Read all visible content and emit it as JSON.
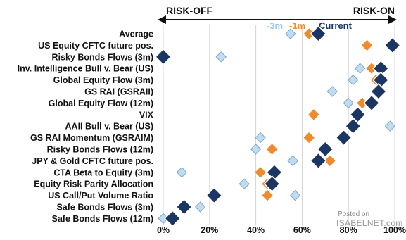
{
  "chart_data": {
    "type": "scatter",
    "header": {
      "left": "RISK-OFF",
      "right": "RISK-ON"
    },
    "xlim": [
      0,
      100
    ],
    "x_ticks": [
      "0%",
      "20%",
      "40%",
      "60%",
      "80%",
      "100%"
    ],
    "x_tick_values": [
      0,
      20,
      40,
      60,
      80,
      100
    ],
    "grid": true,
    "legend_position": "top-right",
    "categories": [
      "Average",
      "US Equity CFTC future pos.",
      "Risky Bonds Flows (3m)",
      "Inv. Intelligence Bull v. Bear (US)",
      "Global Equity Flow (3m)",
      "GS RAI (GSRAII)",
      "Global Equity Flow (12m)",
      "VIX",
      "AAII Bull v. Bear (US)",
      "GS RAI Momentum (GSRAIM)",
      "Risky Bonds Flows (12m)",
      "JPY & Gold CFTC future pos.",
      "CTA Beta to Equity (3m)",
      "Equity Risk Parity Allocation",
      "US Call/Put Volume Ratio",
      "Safe Bonds Flows (3m)",
      "Safe Bonds Flows (12m)"
    ],
    "series": [
      {
        "name": "-3m",
        "color": "#bfdcf3",
        "stroke": "#7fa6c6",
        "values": [
          55,
          98,
          25,
          85,
          82,
          73,
          80,
          83,
          98,
          42,
          40,
          56,
          8,
          35,
          57,
          16,
          0
        ]
      },
      {
        "name": "-1m",
        "color": "#f08a2c",
        "stroke": "#f08a2c",
        "values": [
          63,
          88,
          0,
          90,
          92,
          92,
          86,
          65,
          0,
          63,
          47,
          72,
          42,
          45,
          45,
          0,
          0
        ]
      },
      {
        "name": "Current",
        "color": "#1c3664",
        "stroke": "#ffffff",
        "values": [
          67,
          99,
          0,
          94,
          94,
          93,
          90,
          84,
          82,
          78,
          70,
          67,
          48,
          47,
          22,
          9,
          4
        ]
      }
    ],
    "hidden_points": {
      "-1m": [
        2,
        8,
        15,
        16
      ]
    }
  },
  "watermark": {
    "line1": "Posted on",
    "line2": "ISABELNET.com"
  }
}
